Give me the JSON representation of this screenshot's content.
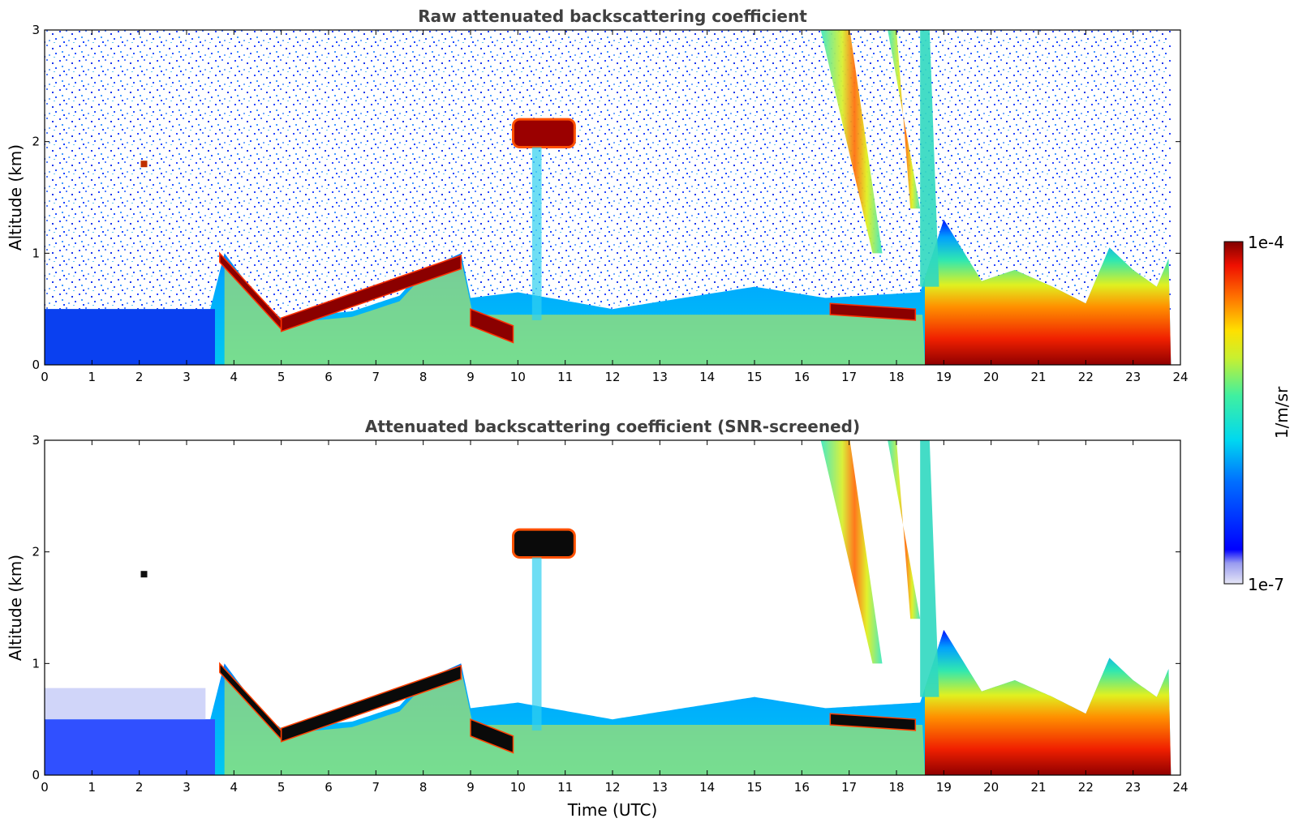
{
  "chart_data": [
    {
      "type": "heatmap",
      "title": "Raw attenuated backscattering coefficient",
      "xlabel": "",
      "ylabel": "Altitude (km)",
      "xlim": [
        0,
        24
      ],
      "ylim": [
        0,
        3
      ],
      "x_ticks": [
        0,
        1,
        2,
        3,
        4,
        5,
        6,
        7,
        8,
        9,
        10,
        11,
        12,
        13,
        14,
        15,
        16,
        17,
        18,
        19,
        20,
        21,
        22,
        23,
        24
      ],
      "y_ticks": [
        0,
        1,
        2,
        3
      ],
      "screened": false
    },
    {
      "type": "heatmap",
      "title": "Attenuated backscattering coefficient (SNR-screened)",
      "xlabel": "Time (UTC)",
      "ylabel": "Altitude (km)",
      "xlim": [
        0,
        24
      ],
      "ylim": [
        0,
        3
      ],
      "x_ticks": [
        0,
        1,
        2,
        3,
        4,
        5,
        6,
        7,
        8,
        9,
        10,
        11,
        12,
        13,
        14,
        15,
        16,
        17,
        18,
        19,
        20,
        21,
        22,
        23,
        24
      ],
      "y_ticks": [
        0,
        1,
        2,
        3
      ],
      "screened": true
    }
  ],
  "colorbar": {
    "label": "1/m/sr",
    "max_label": "1e-4",
    "min_label": "1e-7",
    "scale": "log",
    "colormap": "jet"
  },
  "features": {
    "boundary_layer_top_km": [
      [
        0,
        0.5
      ],
      [
        3.5,
        0.5
      ],
      [
        3.8,
        1.0
      ],
      [
        4.6,
        0.55
      ],
      [
        5.0,
        0.42
      ],
      [
        6.5,
        0.48
      ],
      [
        7.5,
        0.62
      ],
      [
        8.0,
        0.85
      ],
      [
        8.8,
        1.0
      ],
      [
        9.0,
        0.6
      ],
      [
        10.0,
        0.65
      ],
      [
        12,
        0.5
      ],
      [
        15,
        0.7
      ],
      [
        16.5,
        0.6
      ],
      [
        18.5,
        0.65
      ],
      [
        19,
        1.3
      ],
      [
        19.8,
        0.75
      ],
      [
        20.5,
        0.85
      ],
      [
        21.3,
        0.7
      ],
      [
        22,
        0.55
      ],
      [
        22.5,
        1.05
      ],
      [
        23,
        0.85
      ],
      [
        23.5,
        0.7
      ],
      [
        23.8,
        1.0
      ]
    ],
    "strong_layer_segments": [
      {
        "x": [
          3.7,
          5.0
        ],
        "y_top": [
          1.0,
          0.4
        ],
        "thickness_km": 0.08
      },
      {
        "x": [
          5.0,
          8.8
        ],
        "y_top": [
          0.42,
          0.98
        ],
        "thickness_km": 0.12
      },
      {
        "x": [
          9.0,
          9.9
        ],
        "y_top": [
          0.5,
          0.35
        ],
        "thickness_km": 0.15
      },
      {
        "x": [
          16.6,
          18.4
        ],
        "y_top": [
          0.55,
          0.5
        ],
        "thickness_km": 0.1
      }
    ],
    "elevated_cloud": {
      "x": [
        9.9,
        11.2
      ],
      "y": [
        1.95,
        2.2
      ]
    },
    "precip_streaks": [
      {
        "x0": 16.4,
        "x1": 17.7,
        "y_bottom_km": 1.0
      },
      {
        "x0": 18.0,
        "x1": 18.5,
        "y_bottom_km": 1.4
      }
    ],
    "aerosol_blob": {
      "x": 2.1,
      "y": 1.8
    }
  }
}
